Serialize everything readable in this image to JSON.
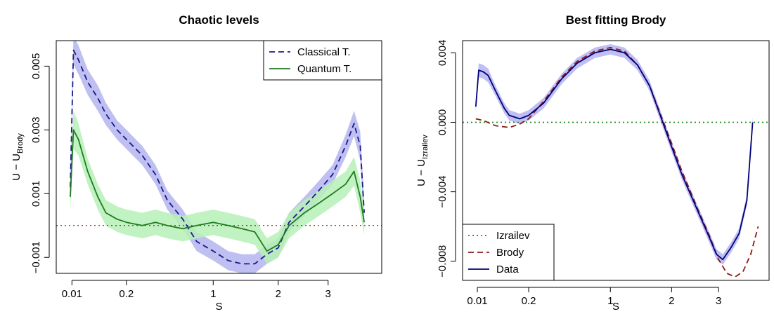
{
  "chart_data": [
    {
      "type": "line",
      "title": "Chaotic levels",
      "xlabel": "S",
      "ylabel_main": "U − U",
      "ylabel_sub": "Brody",
      "x_scale": "sqrt",
      "xlim": [
        0.0,
        4.3
      ],
      "ylim": [
        -0.0015,
        0.0058
      ],
      "xticks": [
        0.01,
        0.2,
        1,
        2,
        3
      ],
      "xtick_labels": [
        "0.01",
        "0.2",
        "1",
        "2",
        "3"
      ],
      "yticks": [
        -0.001,
        0.001,
        0.003,
        0.005
      ],
      "ytick_labels": [
        "−0.001",
        "0.001",
        "0.003",
        "0.005"
      ],
      "reference_line": {
        "y": 0,
        "color": "#aa2222",
        "style": "dotted"
      },
      "legend_position": "top-right",
      "series": [
        {
          "name": "Classical T.",
          "color": "#1a1a8c",
          "band_color": "#b4b4f0",
          "dash": "dashed",
          "x": [
            0.008,
            0.012,
            0.02,
            0.04,
            0.07,
            0.1,
            0.15,
            0.2,
            0.3,
            0.4,
            0.5,
            0.65,
            0.8,
            1.0,
            1.2,
            1.4,
            1.6,
            1.8,
            2.0,
            2.2,
            2.5,
            2.8,
            3.1,
            3.4,
            3.6,
            3.75,
            3.85
          ],
          "y": [
            0.0012,
            0.0055,
            0.0052,
            0.0045,
            0.004,
            0.0035,
            0.003,
            0.0027,
            0.0022,
            0.0016,
            0.0008,
            0.0002,
            -0.0005,
            -0.0008,
            -0.0011,
            -0.0012,
            -0.0012,
            -0.0009,
            -0.0007,
            0.0001,
            0.0006,
            0.0011,
            0.0016,
            0.0025,
            0.0032,
            0.0025,
            0.0004
          ],
          "band": [
            0.00035,
            0.00045,
            0.00045,
            0.0004,
            0.0004,
            0.00035,
            0.0003,
            0.0003,
            0.0003,
            0.0003,
            0.0003,
            0.0003,
            0.0003,
            0.0003,
            0.0003,
            0.0003,
            0.0003,
            0.0003,
            0.0003,
            0.0003,
            0.0003,
            0.0003,
            0.0003,
            0.00035,
            0.0004,
            0.00045,
            0.0004
          ]
        },
        {
          "name": "Quantum T.",
          "color": "#1e7b1e",
          "band_color": "#b6f0b6",
          "dash": "solid",
          "x": [
            0.008,
            0.012,
            0.02,
            0.04,
            0.07,
            0.1,
            0.15,
            0.2,
            0.3,
            0.4,
            0.5,
            0.65,
            0.8,
            1.0,
            1.2,
            1.4,
            1.6,
            1.8,
            2.0,
            2.2,
            2.5,
            2.8,
            3.1,
            3.4,
            3.6,
            3.75,
            3.85
          ],
          "y": [
            0.0009,
            0.003,
            0.0027,
            0.0017,
            0.0009,
            0.0004,
            0.0002,
            0.0001,
            0.0,
            0.0001,
            0.0,
            -0.0001,
            0.0,
            0.0001,
            0.0,
            -0.0001,
            -0.0002,
            -0.0008,
            -0.0006,
            0.0,
            0.0004,
            0.0007,
            0.001,
            0.0013,
            0.0017,
            0.0009,
            0.0001
          ],
          "band": [
            0.0004,
            0.0006,
            0.0005,
            0.0004,
            0.0004,
            0.0004,
            0.0004,
            0.0004,
            0.0004,
            0.0004,
            0.0004,
            0.0004,
            0.0004,
            0.0004,
            0.0004,
            0.0004,
            0.0004,
            0.0004,
            0.0004,
            0.0004,
            0.0004,
            0.0004,
            0.0004,
            0.0004,
            0.00045,
            0.0005,
            0.0004
          ]
        }
      ]
    },
    {
      "type": "line",
      "title": "Best fitting Brody",
      "xlabel": "S",
      "ylabel_main": "U − U",
      "ylabel_sub": "Izrailev",
      "x_scale": "sqrt",
      "xlim": [
        0.0,
        4.3
      ],
      "ylim": [
        -0.0091,
        0.0047
      ],
      "xticks": [
        0.01,
        0.2,
        1,
        2,
        3
      ],
      "xtick_labels": [
        "0.01",
        "0.2",
        "1",
        "2",
        "3"
      ],
      "yticks": [
        -0.008,
        -0.004,
        0.0,
        0.004
      ],
      "ytick_labels": [
        "−0.008",
        "−0.004",
        "0.000",
        "0.004"
      ],
      "legend_position": "bottom-left",
      "series": [
        {
          "name": "Izrailev",
          "color": "#1e8c1e",
          "dash": "dotted",
          "x": [
            0.0,
            4.3
          ],
          "y": [
            0.0,
            0.0
          ]
        },
        {
          "name": "Brody",
          "color": "#8b1a1a",
          "dash": "dashed",
          "x": [
            0.008,
            0.02,
            0.05,
            0.1,
            0.15,
            0.2,
            0.3,
            0.45,
            0.6,
            0.8,
            1.0,
            1.2,
            1.4,
            1.6,
            1.8,
            2.0,
            2.2,
            2.5,
            2.8,
            3.0,
            3.2,
            3.4,
            3.6,
            3.8,
            4.0
          ],
          "y": [
            0.0002,
            0.0001,
            -0.0002,
            -0.0003,
            -0.0001,
            0.0002,
            0.0012,
            0.0026,
            0.0035,
            0.0041,
            0.0043,
            0.0041,
            0.0033,
            0.0021,
            0.0004,
            -0.0012,
            -0.0028,
            -0.0048,
            -0.0066,
            -0.0079,
            -0.0087,
            -0.0089,
            -0.0086,
            -0.0076,
            -0.006
          ]
        },
        {
          "name": "Data",
          "color": "#00007a",
          "band_color": "#b4b4f0",
          "dash": "solid",
          "x": [
            0.008,
            0.012,
            0.02,
            0.03,
            0.05,
            0.08,
            0.1,
            0.15,
            0.2,
            0.3,
            0.45,
            0.6,
            0.8,
            1.0,
            1.2,
            1.4,
            1.6,
            1.8,
            2.0,
            2.2,
            2.5,
            2.8,
            2.95,
            3.1,
            3.3,
            3.5,
            3.7,
            3.85
          ],
          "y": [
            0.0009,
            0.003,
            0.0029,
            0.0027,
            0.0018,
            0.0008,
            0.0004,
            0.0002,
            0.0004,
            0.0011,
            0.0025,
            0.0034,
            0.004,
            0.0042,
            0.004,
            0.0033,
            0.0021,
            0.0003,
            -0.0014,
            -0.003,
            -0.0049,
            -0.0067,
            -0.0076,
            -0.0079,
            -0.0072,
            -0.0064,
            -0.0045,
            0.0
          ],
          "band": [
            0.0003,
            0.0004,
            0.0004,
            0.0004,
            0.0003,
            0.0003,
            0.0003,
            0.0003,
            0.0003,
            0.0003,
            0.0003,
            0.0003,
            0.0003,
            0.0003,
            0.0003,
            0.0003,
            0.0003,
            0.0003,
            0.0003,
            0.0003,
            0.0003,
            0.0003,
            0.0003,
            0.0003,
            0.0003,
            0.0003,
            0.0003,
            0.0003
          ]
        }
      ]
    }
  ]
}
